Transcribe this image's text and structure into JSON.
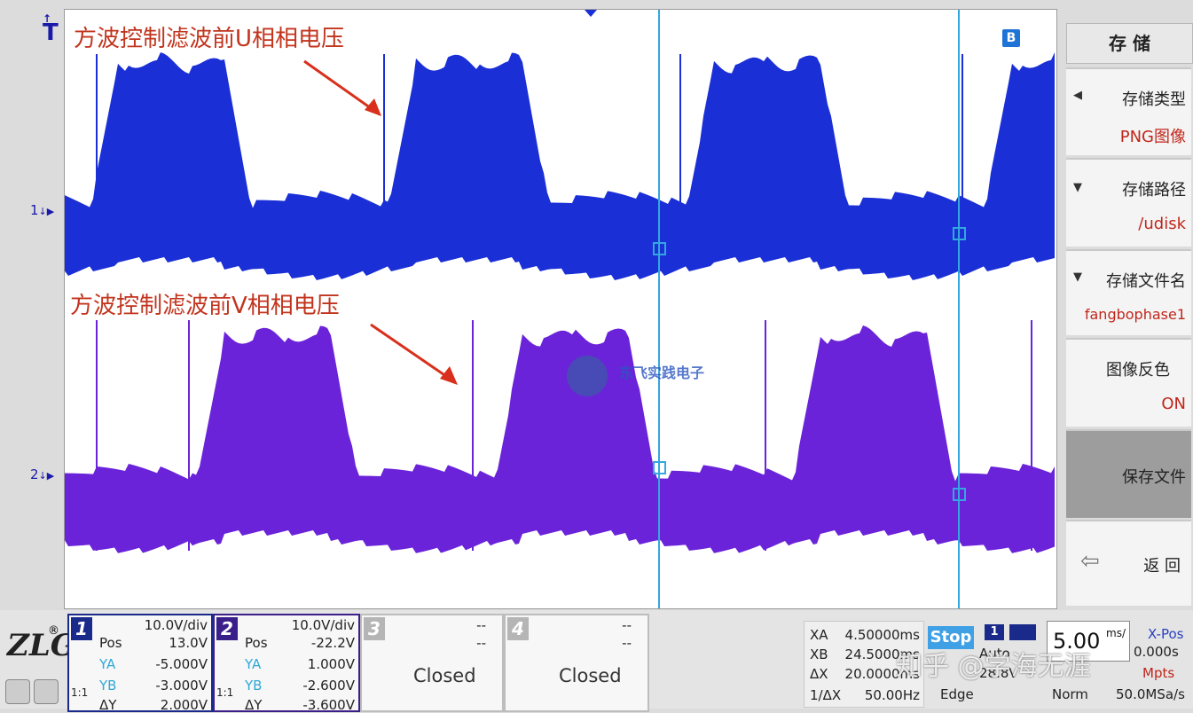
{
  "screen": {
    "annotation_u": "方波控制滤波前U相相电压",
    "annotation_v": "方波控制滤波前V相相电压",
    "cursor_b_label": "B",
    "ch1_marker": "1",
    "ch2_marker": "2",
    "trigger_marker": "T",
    "watermark_text": "东飞实践电子",
    "colors": {
      "ch1": "#1a2fd6",
      "ch2": "#6a23d9",
      "annotation": "#c2341d",
      "cursor": "#33a7e0"
    }
  },
  "menu": {
    "title": "存 储",
    "items": [
      {
        "label": "存储类型",
        "value": "PNG图像"
      },
      {
        "label": "存储路径",
        "value": "/udisk"
      },
      {
        "label": "存储文件名",
        "value": "fangbophase1"
      },
      {
        "label": "图像反色",
        "value": "ON"
      },
      {
        "label": "保存文件",
        "value": ""
      },
      {
        "label": "返 回",
        "value": ""
      }
    ]
  },
  "channels": [
    {
      "num": "1",
      "scale": "10.0V/div",
      "pos_label": "Pos",
      "pos": "13.0V",
      "ya_label": "YA",
      "ya": "-5.000V",
      "yb_label": "YB",
      "yb": "-3.000V",
      "dy_label": "ΔY",
      "dy": "2.000V",
      "ratio": "1:1"
    },
    {
      "num": "2",
      "scale": "10.0V/div",
      "pos_label": "Pos",
      "pos": "-22.2V",
      "ya_label": "YA",
      "ya": "1.000V",
      "yb_label": "YB",
      "yb": "-2.600V",
      "dy_label": "ΔY",
      "dy": "-3.600V",
      "ratio": "1:1"
    },
    {
      "num": "3",
      "scale": "--",
      "pos": "--",
      "status": "Closed"
    },
    {
      "num": "4",
      "scale": "--",
      "pos": "--",
      "status": "Closed"
    }
  ],
  "cursors": {
    "xa_label": "XA",
    "xa": "4.50000ms",
    "xb_label": "XB",
    "xb": "24.5000ms",
    "dx_label": "ΔX",
    "dx": "20.0000ms",
    "inv_label": "1/ΔX",
    "inv": "50.00Hz"
  },
  "trigger": {
    "state": "Stop",
    "mode": "Auto",
    "type": "Edge",
    "level": "28.8V",
    "channel": "1"
  },
  "timebase": {
    "value": "5.00",
    "unit": "ms/",
    "xpos_label": "X-Pos",
    "xpos": "0.000s",
    "mem": "Mpts",
    "acq": "Norm",
    "rate": "50.0MSa/s"
  },
  "overlay": {
    "zhihu": "知乎 @学海无涯"
  }
}
